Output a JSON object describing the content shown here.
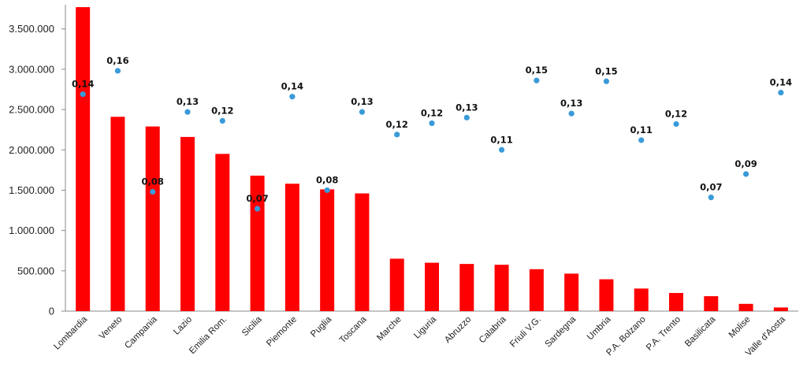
{
  "chart_data": {
    "type": "bar",
    "categories": [
      "Lombardia",
      "Veneto",
      "Campania",
      "Lazio",
      "Emilia Rom.",
      "Sicilia",
      "Piemonte",
      "Puglia",
      "Toscana",
      "Marche",
      "Liguria",
      "Abruzzo",
      "Calabria",
      "Friuli V.G.",
      "Sardegna",
      "Umbria",
      "P.A. Bolzano",
      "P.A. Trento",
      "Basilicata",
      "Molise",
      "Valle d'Aosta"
    ],
    "series": [
      {
        "type": "bar",
        "color": "#ff0000",
        "values": [
          3770000,
          2410000,
          2290000,
          2160000,
          1950000,
          1680000,
          1580000,
          1510000,
          1460000,
          650000,
          600000,
          585000,
          575000,
          520000,
          465000,
          395000,
          280000,
          225000,
          185000,
          90000,
          45000
        ]
      },
      {
        "type": "scatter",
        "color": "#3a9ad9",
        "values": [
          2690000,
          2980000,
          1480000,
          2470000,
          2360000,
          1270000,
          2660000,
          1500000,
          2470000,
          2190000,
          2330000,
          2400000,
          2000000,
          2860000,
          2450000,
          2850000,
          2120000,
          2320000,
          1410000,
          1700000,
          2710000
        ],
        "labels": [
          "0,14",
          "0,16",
          "0,08",
          "0,13",
          "0,12",
          "0,07",
          "0,14",
          "0,08",
          "0,13",
          "0,12",
          "0,12",
          "0,13",
          "0,11",
          "0,15",
          "0,13",
          "0,15",
          "0,11",
          "0,12",
          "0,07",
          "0,09",
          "0,14"
        ]
      }
    ],
    "y_ticks": [
      "0",
      "500.000",
      "1.000.000",
      "1.500.000",
      "2.000.000",
      "2.500.000",
      "3.000.000",
      "3.500.000"
    ],
    "ylim": [
      0,
      3800000
    ],
    "grid": false,
    "legend": "none"
  }
}
